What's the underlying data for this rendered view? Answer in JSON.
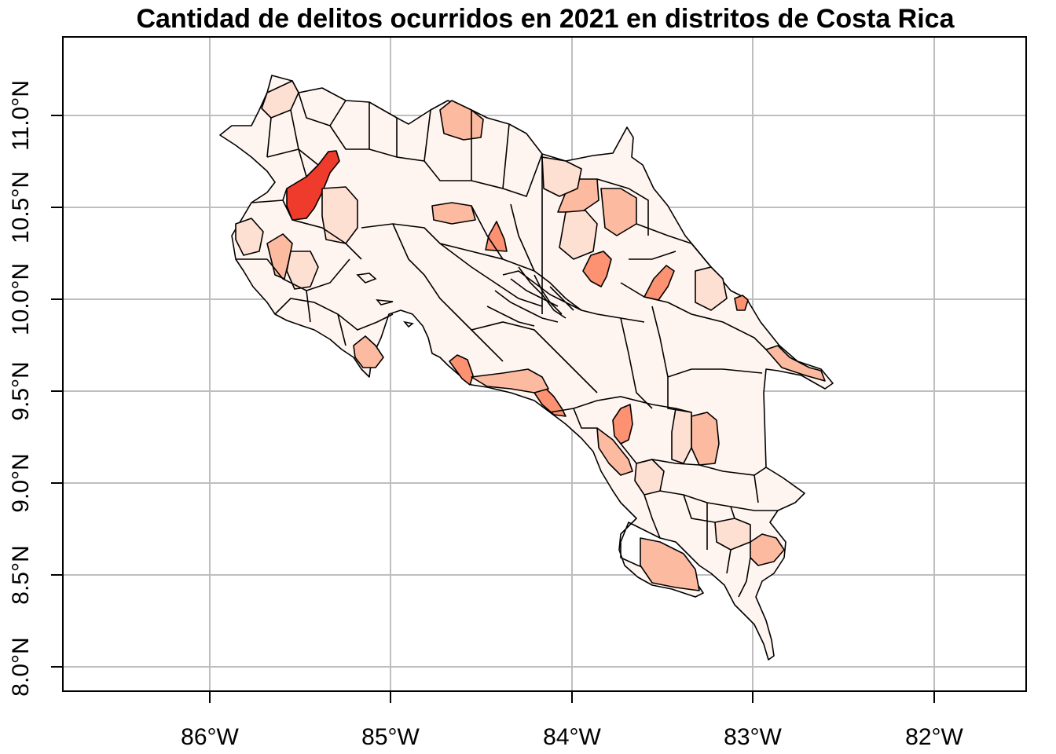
{
  "map": {
    "title": "Cantidad de delitos ocurridos en 2021 en distritos de Costa Rica",
    "x_ticks": [
      "86°W",
      "85°W",
      "84°W",
      "83°W",
      "82°W"
    ],
    "y_ticks": [
      "8.0°N",
      "8.5°N",
      "9.0°N",
      "9.5°N",
      "10.0°N",
      "10.5°N",
      "11.0°N"
    ],
    "grid": true,
    "legend": "none",
    "colors": {
      "background": "#ffffff",
      "grid": "#bebebe",
      "border": "#000000",
      "low": "#fff5f0",
      "mid_low": "#fee0d2",
      "mid": "#fcbba1",
      "mid_high": "#fc9272",
      "high": "#ef3b2c"
    }
  }
}
